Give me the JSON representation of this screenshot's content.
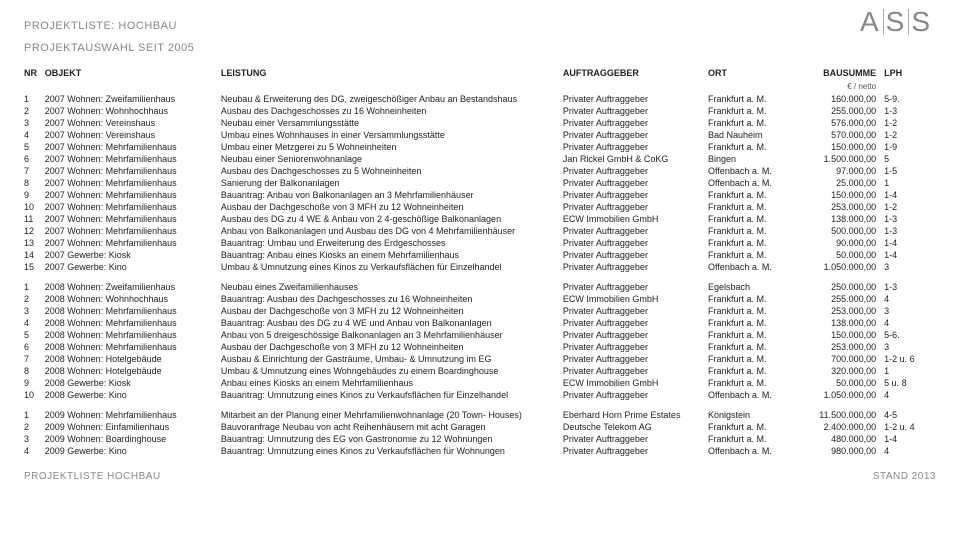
{
  "header": {
    "title1": "PROJEKTLISTE: HOCHBAU",
    "title2": "PROJEKTAUSWAHL SEIT 2005",
    "logo_letters": [
      "A",
      "S",
      "S"
    ]
  },
  "columns": {
    "nr": "NR",
    "objekt": "OBJEKT",
    "leistung": "LEISTUNG",
    "auftraggeber": "AUFTRAGGEBER",
    "ort": "ORT",
    "bausumme": "BAUSUMME",
    "bausumme_sub": "€ / netto",
    "lph": "LPH"
  },
  "groups": [
    [
      {
        "nr": "1",
        "objekt": "2007 Wohnen: Zweifamilienhaus",
        "leistung": "Neubau & Erweiterung des DG, zweigeschößiger Anbau an Bestandshaus",
        "ag": "Privater Auftraggeber",
        "ort": "Frankfurt a. M.",
        "bau": "160.000,00",
        "lph": "5-9."
      },
      {
        "nr": "2",
        "objekt": "2007 Wohnen: Wohnhochhaus",
        "leistung": "Ausbau des Dachgeschosses zu 16 Wohneinheiten",
        "ag": "Privater Auftraggeber",
        "ort": "Frankfurt a. M.",
        "bau": "255.000,00",
        "lph": "1-3"
      },
      {
        "nr": "3",
        "objekt": "2007 Wohnen: Vereinshaus",
        "leistung": "Neubau einer Versammlungsstätte",
        "ag": "Privater Auftraggeber",
        "ort": "Frankfurt a. M.",
        "bau": "576.000,00",
        "lph": "1-2"
      },
      {
        "nr": "4",
        "objekt": "2007 Wohnen: Vereinshaus",
        "leistung": "Umbau eines Wohnhauses in einer Versammlungsstätte",
        "ag": "Privater Auftraggeber",
        "ort": "Bad Nauheim",
        "bau": "570.000,00",
        "lph": "1-2"
      },
      {
        "nr": "5",
        "objekt": "2007 Wohnen: Mehrfamilienhaus",
        "leistung": "Umbau einer Metzgerei zu 5 Wohneinheiten",
        "ag": "Privater Auftraggeber",
        "ort": "Frankfurt a. M.",
        "bau": "150.000,00",
        "lph": "1-9"
      },
      {
        "nr": "6",
        "objekt": "2007 Wohnen: Mehrfamilienhaus",
        "leistung": "Neubau einer Seniorenwohnanlage",
        "ag": "Jan Rickel GmbH & CoKG",
        "ort": "Bingen",
        "bau": "1.500.000,00",
        "lph": "5"
      },
      {
        "nr": "7",
        "objekt": "2007 Wohnen: Mehrfamilienhaus",
        "leistung": "Ausbau des Dachgeschosses zu 5 Wohneinheiten",
        "ag": "Privater Auftraggeber",
        "ort": "Offenbach a. M.",
        "bau": "97.000,00",
        "lph": "1-5"
      },
      {
        "nr": "8",
        "objekt": "2007 Wohnen: Mehrfamilienhaus",
        "leistung": "Sanierung der Balkonanlagen",
        "ag": "Privater Auftraggeber",
        "ort": "Offenbach a. M.",
        "bau": "25.000,00",
        "lph": "1"
      },
      {
        "nr": "9",
        "objekt": "2007 Wohnen: Mehrfamilienhaus",
        "leistung": "Bauantrag: Anbau von Balkonanlagen an 3 Mehrfamilienhäuser",
        "ag": "Privater Auftraggeber",
        "ort": "Frankfurt a. M.",
        "bau": "150.000,00",
        "lph": "1-4"
      },
      {
        "nr": "10",
        "objekt": "2007 Wohnen: Mehrfamilienhaus",
        "leistung": "Ausbau der Dachgeschoße von 3 MFH zu 12 Wohneinheiten",
        "ag": "Privater Auftraggeber",
        "ort": "Frankfurt a. M.",
        "bau": "253.000,00",
        "lph": "1-2"
      },
      {
        "nr": "11",
        "objekt": "2007 Wohnen: Mehrfamilienhaus",
        "leistung": "Ausbau des DG zu 4 WE & Anbau von 2 4-geschößige Balkonanlagen",
        "ag": "ECW Immobilien GmbH",
        "ort": "Frankfurt a. M.",
        "bau": "138.000,00",
        "lph": "1-3"
      },
      {
        "nr": "12",
        "objekt": "2007 Wohnen: Mehrfamilienhaus",
        "leistung": "Anbau von Balkonanlagen und Ausbau des DG von 4 Mehrfamilienhäuser",
        "ag": "Privater Auftraggeber",
        "ort": "Frankfurt a. M.",
        "bau": "500.000,00",
        "lph": "1-3"
      },
      {
        "nr": "13",
        "objekt": "2007 Wohnen: Mehrfamilienhaus",
        "leistung": "Bauantrag: Umbau und Erweiterung des Erdgeschosses",
        "ag": "Privater Auftraggeber",
        "ort": "Frankfurt a. M.",
        "bau": "90.000,00",
        "lph": "1-4"
      },
      {
        "nr": "14",
        "objekt": "2007 Gewerbe: Kiosk",
        "leistung": "Bauantrag: Anbau eines Kiosks an einem Mehrfamilienhaus",
        "ag": "Privater Auftraggeber",
        "ort": "Frankfurt a. M.",
        "bau": "50.000,00",
        "lph": "1-4"
      },
      {
        "nr": "15",
        "objekt": "2007 Gewerbe: Kino",
        "leistung": "Umbau & Umnutzung eines Kinos zu Verkaufsflächen für Einzelhandel",
        "ag": "Privater Auftraggeber",
        "ort": "Offenbach a. M.",
        "bau": "1.050.000,00",
        "lph": "3"
      }
    ],
    [
      {
        "nr": "1",
        "objekt": "2008 Wohnen: Zweifamilienhaus",
        "leistung": "Neubau eines Zweifamilienhauses",
        "ag": "Privater Auftraggeber",
        "ort": "Egelsbach",
        "bau": "250.000,00",
        "lph": "1-3"
      },
      {
        "nr": "2",
        "objekt": "2008 Wohnen: Wohnhochhaus",
        "leistung": "Bauantrag: Ausbau des Dachgeschosses zu 16 Wohneinheiten",
        "ag": "ECW Immobilien GmbH",
        "ort": "Frankfurt a. M.",
        "bau": "255.000,00",
        "lph": "4"
      },
      {
        "nr": "3",
        "objekt": "2008 Wohnen: Mehrfamilienhaus",
        "leistung": "Ausbau der Dachgeschoße von 3 MFH zu 12 Wohneinheiten",
        "ag": "Privater Auftraggeber",
        "ort": "Frankfurt a. M.",
        "bau": "253.000,00",
        "lph": "3"
      },
      {
        "nr": "4",
        "objekt": "2008 Wohnen: Mehrfamilienhaus",
        "leistung": "Bauantrag: Ausbau des DG zu 4 WE und Anbau von Balkonanlagen",
        "ag": "Privater Auftraggeber",
        "ort": "Frankfurt a. M.",
        "bau": "138.000,00",
        "lph": "4"
      },
      {
        "nr": "5",
        "objekt": "2008 Wohnen: Mehrfamilienhaus",
        "leistung": "Anbau von 5 dreigeschössige Balkonanlagen an 3 Mehrfamilienhäuser",
        "ag": "Privater Auftraggeber",
        "ort": "Frankfurt a. M.",
        "bau": "150.000,00",
        "lph": "5-6."
      },
      {
        "nr": "6",
        "objekt": "2008 Wohnen: Mehrfamilienhaus",
        "leistung": "Ausbau der Dachgeschoße von 3 MFH zu 12 Wohneinheiten",
        "ag": "Privater Auftraggeber",
        "ort": "Frankfurt a. M.",
        "bau": "253.000,00",
        "lph": "3"
      },
      {
        "nr": "7",
        "objekt": "2008 Wohnen: Hotelgebäude",
        "leistung": "Ausbau & Einrichtung der Gasträume, Umbau- & Umnutzung im EG",
        "ag": "Privater Auftraggeber",
        "ort": "Frankfurt a. M.",
        "bau": "700.000,00",
        "lph": "1-2 u. 6"
      },
      {
        "nr": "8",
        "objekt": "2008 Wohnen: Hotelgebäude",
        "leistung": "Umbau & Umnutzung eines Wohngebäudes zu einem Boardinghouse",
        "ag": "Privater Auftraggeber",
        "ort": "Frankfurt a. M.",
        "bau": "320.000,00",
        "lph": "1"
      },
      {
        "nr": "9",
        "objekt": "2008 Gewerbe: Kiosk",
        "leistung": "Anbau eines Kiosks an einem Mehrfamilienhaus",
        "ag": "ECW Immobilien GmbH",
        "ort": "Frankfurt a. M.",
        "bau": "50.000,00",
        "lph": "5 u. 8"
      },
      {
        "nr": "10",
        "objekt": "2008 Gewerbe: Kino",
        "leistung": "Bauantrag: Umnutzung eines Kinos zu Verkaufsflächen für Einzelhandel",
        "ag": "Privater Auftraggeber",
        "ort": "Offenbach a. M.",
        "bau": "1.050.000,00",
        "lph": "4"
      }
    ],
    [
      {
        "nr": "1",
        "objekt": "2009 Wohnen: Mehrfamilienhaus",
        "leistung": "Mitarbeit an der Planung einer Mehrfamilienwohnanlage (20 Town- Houses)",
        "ag": "Eberhard Horn Prime Estates",
        "ort": "Königstein",
        "bau": "11.500.000,00",
        "lph": "4-5"
      },
      {
        "nr": "2",
        "objekt": "2009 Wohnen: Einfamilienhaus",
        "leistung": "Bauvoranfrage Neubau von acht Reihenhäusern mit acht Garagen",
        "ag": "Deutsche Telekom AG",
        "ort": "Frankfurt a. M.",
        "bau": "2.400.000,00",
        "lph": "1-2 u. 4"
      },
      {
        "nr": "3",
        "objekt": "2009 Wohnen: Boardinghouse",
        "leistung": "Bauantrag: Umnutzung des EG von Gastronomie zu 12 Wohnungen",
        "ag": "Privater Auftraggeber",
        "ort": "Frankfurt a. M.",
        "bau": "480.000,00",
        "lph": "1-4"
      },
      {
        "nr": "4",
        "objekt": "2009 Gewerbe: Kino",
        "leistung": "Bauantrag: Umnutzung eines Kinos zu Verkaufsflächen für Wohnungen",
        "ag": "Privater Auftraggeber",
        "ort": "Offenbach a. M.",
        "bau": "980.000,00",
        "lph": "4"
      }
    ]
  ],
  "footer": {
    "left": "PROJEKTLISTE HOCHBAU",
    "right": "STAND 2013"
  }
}
